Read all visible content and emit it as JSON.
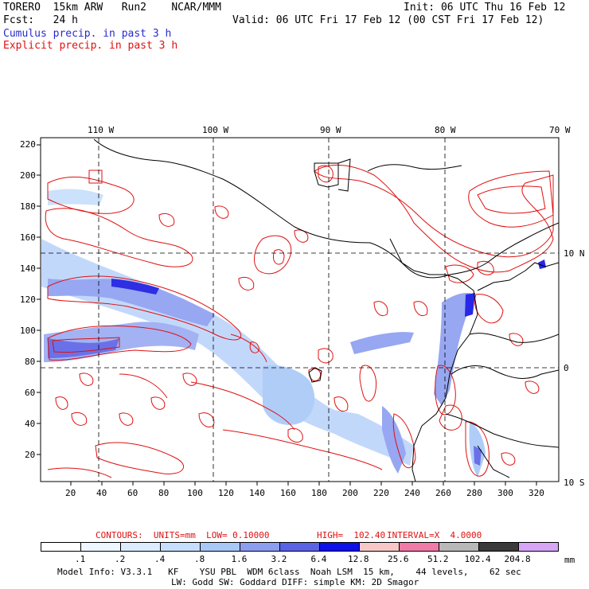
{
  "header": {
    "model": "TORERO  15km ARW   Run2    NCAR/MMM",
    "init": "Init: 06 UTC Thu 16 Feb 12",
    "fcst": "Fcst:   24 h",
    "valid": "Valid: 06 UTC Fri 17 Feb 12 (00 CST Fri 17 Feb 12)",
    "cumulus": "Cumulus precip. in past 3 h",
    "explicit": "Explicit precip. in past 3 h"
  },
  "axes": {
    "top_lon": [
      "110 W",
      "100 W",
      "90 W",
      "80 W",
      "70 W"
    ],
    "right_lat": [
      "10 N",
      "0",
      "10 S"
    ],
    "left_y": [
      "220",
      "200",
      "180",
      "160",
      "140",
      "120",
      "100",
      "80",
      "60",
      "40",
      "20"
    ],
    "bottom_x": [
      "20",
      "40",
      "60",
      "80",
      "100",
      "120",
      "140",
      "160",
      "180",
      "200",
      "220",
      "240",
      "260",
      "280",
      "300",
      "320"
    ]
  },
  "contour_info": {
    "contours": "CONTOURS:  UNITS=mm  LOW= 0.10000",
    "high": "HIGH=  102.40",
    "interval": "INTERVAL=X  4.0000"
  },
  "legend": {
    "unit": "mm",
    "labels": [
      ".1",
      ".2",
      ".4",
      ".8",
      "1.6",
      "3.2",
      "6.4",
      "12.8",
      "25.6",
      "51.2",
      "102.4",
      "204.8"
    ],
    "colors": [
      "#ffffff",
      "#eef6ff",
      "#dcecfe",
      "#c6defb",
      "#a8c8f8",
      "#8c9ef0",
      "#5a62e6",
      "#1010e8",
      "#f8c8c8",
      "#f07aa8",
      "#b8b8b8",
      "#3a3a3a",
      "#d8a6f6"
    ]
  },
  "footer": {
    "line1": "Model Info: V3.3.1   KF    YSU PBL  WDM 6class  Noah LSM  15 km,    44 levels,    62 sec",
    "line2": "LW: Godd SW: Goddard DIFF: simple KM: 2D Smagor"
  }
}
